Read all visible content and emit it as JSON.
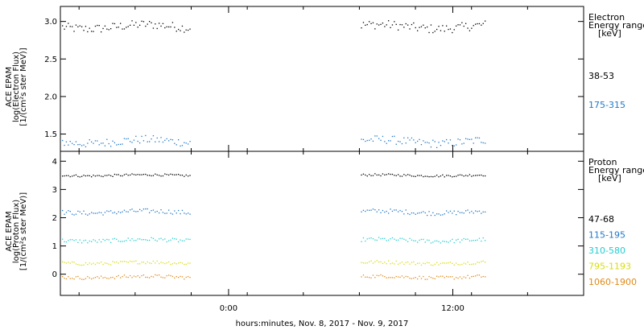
{
  "chart_data": [
    {
      "type": "scatter",
      "panel": "electron",
      "ylabel_lines": [
        "ACE EPAM",
        "log(Electron Flux)",
        "[1/(cm²s ster MeV)]"
      ],
      "yticks": [
        "3.0",
        "2.5",
        "2.0",
        "1.5"
      ],
      "ytick_values": [
        3.0,
        2.5,
        2.0,
        1.5
      ],
      "ylim": [
        1.27,
        3.2
      ],
      "legend_title": [
        "Electron",
        "Energy range",
        "[keV]"
      ],
      "series": [
        {
          "name": "38-53",
          "color": "#000000",
          "level": 2.93,
          "jitter": 0.06
        },
        {
          "name": "175-315",
          "color": "#1f78c8",
          "level": 1.4,
          "jitter": 0.055
        }
      ]
    },
    {
      "type": "scatter",
      "panel": "proton",
      "ylabel_lines": [
        "ACE EPAM",
        "log(Proton Flux)",
        "[1/(cm²s ster MeV)]"
      ],
      "yticks": [
        "4",
        "3",
        "2",
        "1",
        "0"
      ],
      "ytick_values": [
        4,
        3,
        2,
        1,
        0
      ],
      "ylim": [
        -0.75,
        4.35
      ],
      "legend_title": [
        "Proton",
        "Energy range",
        "[keV]"
      ],
      "series": [
        {
          "name": "47-68",
          "color": "#000000",
          "level": 3.5,
          "jitter": 0.04
        },
        {
          "name": "115-195",
          "color": "#1f78c8",
          "level": 2.2,
          "jitter": 0.08
        },
        {
          "name": "310-580",
          "color": "#22cdd2",
          "level": 1.2,
          "jitter": 0.07
        },
        {
          "name": "795-1193",
          "color": "#d8dc10",
          "level": 0.4,
          "jitter": 0.06
        },
        {
          "name": "1060-1900",
          "color": "#e08a1a",
          "level": -0.1,
          "jitter": 0.06
        }
      ]
    }
  ],
  "x_axis": {
    "ticks": [
      "0:00",
      "12:00"
    ],
    "tick_hours": [
      24,
      36
    ],
    "xlim_hours": [
      15,
      43
    ],
    "data_segments_hours": [
      [
        15,
        22
      ],
      [
        31,
        37.8
      ]
    ],
    "xlabel": "hours:minutes, Nov.  8, 2017 - Nov.  9, 2017"
  }
}
